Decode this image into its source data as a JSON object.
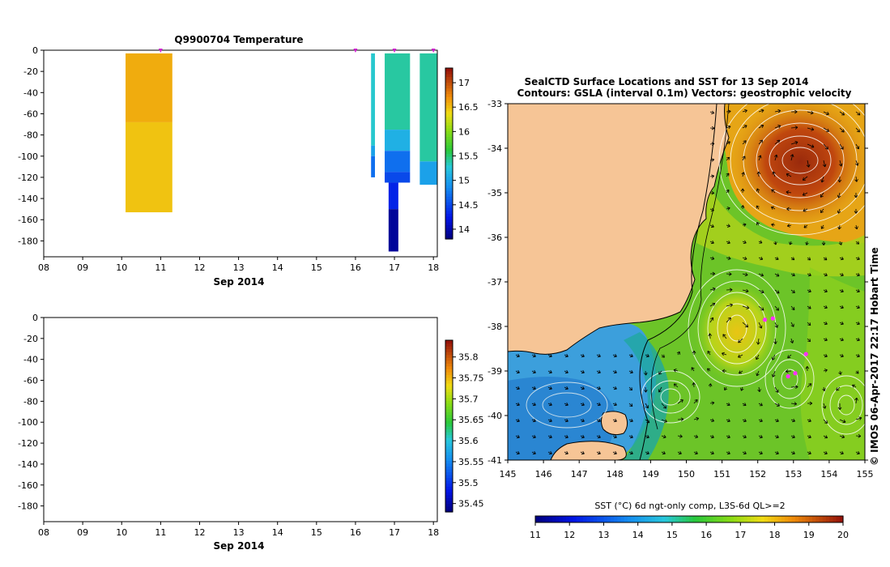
{
  "chart_data": [
    {
      "type": "heatmap",
      "title": "Q9900704  Temperature",
      "xlabel": "Sep 2014",
      "ylabel": "",
      "x_ticks": [
        "08",
        "09",
        "10",
        "11",
        "12",
        "13",
        "14",
        "15",
        "16",
        "17",
        "18"
      ],
      "xlim": [
        8,
        18.1
      ],
      "y_ticks": [
        0,
        -20,
        -40,
        -60,
        -80,
        -100,
        -120,
        -140,
        -160,
        -180
      ],
      "ylim": [
        -195,
        0
      ],
      "colorbar": {
        "ticks": [
          17,
          16.5,
          16,
          15.5,
          15,
          14.5,
          14
        ],
        "range": [
          13.8,
          17.3
        ]
      },
      "profile_markers_day": [
        11.0,
        16.0,
        17.0,
        18.0
      ],
      "profiles": [
        {
          "x0": 10.1,
          "x1": 11.3,
          "segments": [
            {
              "top": -3,
              "bottom": -68,
              "value": 16.6
            },
            {
              "top": -68,
              "bottom": -153,
              "value": 16.5
            }
          ]
        },
        {
          "x0": 16.4,
          "x1": 16.5,
          "segments": [
            {
              "top": -3,
              "bottom": -90,
              "value": 15.3
            },
            {
              "top": -90,
              "bottom": -100,
              "value": 15.0
            },
            {
              "top": -100,
              "bottom": -120,
              "value": 14.7
            }
          ]
        },
        {
          "x0": 16.75,
          "x1": 17.4,
          "segments": [
            {
              "top": -3,
              "bottom": -75,
              "value": 15.4
            },
            {
              "top": -75,
              "bottom": -95,
              "value": 15.1
            },
            {
              "top": -95,
              "bottom": -115,
              "value": 14.7
            },
            {
              "top": -115,
              "bottom": -125,
              "value": 14.5
            }
          ]
        },
        {
          "x0": 16.85,
          "x1": 17.1,
          "segments": [
            {
              "top": -125,
              "bottom": -150,
              "value": 14.3
            },
            {
              "top": -150,
              "bottom": -190,
              "value": 13.9
            }
          ]
        },
        {
          "x0": 17.65,
          "x1": 18.1,
          "segments": [
            {
              "top": -3,
              "bottom": -105,
              "value": 15.4
            },
            {
              "top": -105,
              "bottom": -127,
              "value": 15.0
            }
          ]
        }
      ]
    },
    {
      "type": "heatmap",
      "title": "",
      "xlabel": "Sep 2014",
      "ylabel": "",
      "x_ticks": [
        "08",
        "09",
        "10",
        "11",
        "12",
        "13",
        "14",
        "15",
        "16",
        "17",
        "18"
      ],
      "xlim": [
        8,
        18.1
      ],
      "y_ticks": [
        0,
        -20,
        -40,
        -60,
        -80,
        -100,
        -120,
        -140,
        -160,
        -180
      ],
      "ylim": [
        -195,
        0
      ],
      "colorbar": {
        "ticks": [
          35.8,
          35.75,
          35.7,
          35.65,
          35.6,
          35.55,
          35.5,
          35.45
        ],
        "range": [
          35.43,
          35.84
        ]
      },
      "profiles": []
    },
    {
      "type": "heatmap",
      "title": "SealCTD Surface Locations and SST for 13 Sep 2014",
      "subtitle": "Contours: GSLA (interval 0.1m) Vectors: geostrophic velocity",
      "side_label": "© IMOS 06-Apr-2017 22:17 Hobart Time",
      "x_ticks": [
        "145",
        "146",
        "147",
        "148",
        "149",
        "150",
        "151",
        "152",
        "153",
        "154",
        "155"
      ],
      "xlim": [
        145,
        155
      ],
      "y_ticks": [
        "-33",
        "-34",
        "-35",
        "-36",
        "-37",
        "-38",
        "-39",
        "-40",
        "-41"
      ],
      "ylim": [
        -41,
        -33
      ],
      "colorbar": {
        "label": "SST (°C) 6d ngt-only comp, L3S-6d QL>=2",
        "ticks": [
          "11",
          "12",
          "13",
          "14",
          "15",
          "16",
          "17",
          "18",
          "19",
          "20"
        ],
        "range": [
          11,
          20
        ]
      },
      "seal_locations": [
        {
          "lon": 152.85,
          "lat": -39.12
        },
        {
          "lon": 153.05,
          "lat": -39.05
        },
        {
          "lon": 153.35,
          "lat": -38.62
        },
        {
          "lon": 152.2,
          "lat": -37.85
        },
        {
          "lon": 152.42,
          "lat": -37.82
        }
      ]
    }
  ]
}
